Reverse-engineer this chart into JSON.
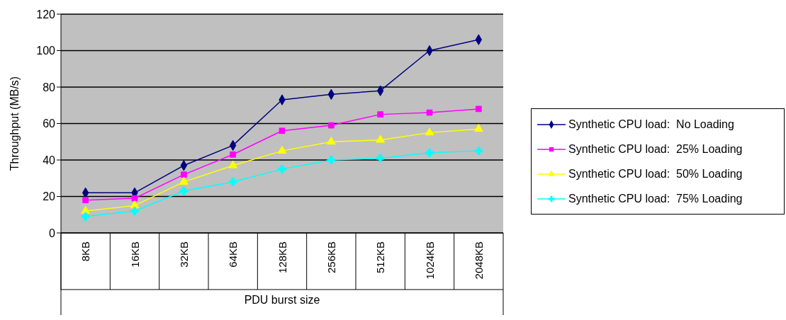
{
  "chart_data": {
    "type": "line",
    "categories": [
      "8KB",
      "16KB",
      "32KB",
      "64KB",
      "128KB",
      "256KB",
      "512KB",
      "1024KB",
      "2048KB"
    ],
    "xlabel": "PDU burst size",
    "ylabel": "Throughput (MB/s)",
    "ylim": [
      0,
      120
    ],
    "yticks": [
      0,
      20,
      40,
      60,
      80,
      100,
      120
    ],
    "grid": "y",
    "legend": "right",
    "series": [
      {
        "name": "Synthetic CPU load:  No Loading",
        "color": "#000080",
        "marker": "diamond",
        "values": [
          22,
          22,
          37,
          48,
          73,
          76,
          78,
          100,
          106
        ]
      },
      {
        "name": "Synthetic CPU load:  25% Loading",
        "color": "#ff00ff",
        "marker": "square",
        "values": [
          18,
          19,
          32,
          43,
          56,
          59,
          65,
          66,
          68
        ]
      },
      {
        "name": "Synthetic CPU load:  50% Loading",
        "color": "#ffff00",
        "marker": "triangle",
        "values": [
          12,
          15,
          28,
          37,
          45,
          50,
          51,
          55,
          57
        ]
      },
      {
        "name": "Synthetic CPU load:  75% Loading",
        "color": "#00ffff",
        "marker": "cross",
        "values": [
          9,
          12,
          23,
          28,
          35,
          40,
          41,
          44,
          45
        ]
      }
    ]
  }
}
